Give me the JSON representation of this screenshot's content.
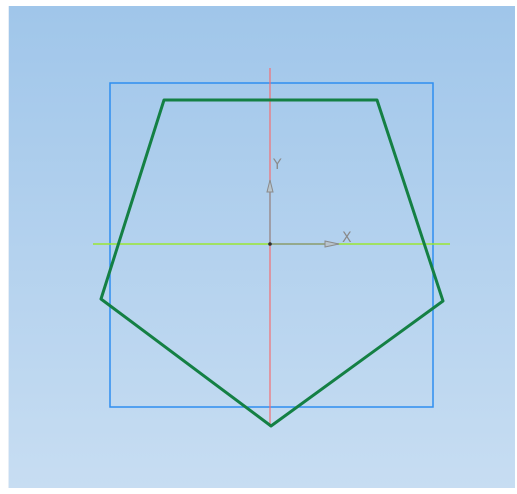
{
  "viewport": {
    "gradient_top": "#a0c6ea",
    "gradient_bottom": "#c7ddf2"
  },
  "colors": {
    "frame": "#2e8ef0",
    "polygon": "#148044",
    "vertical_axis": "#f26f73",
    "horizontal_axis": "#9ae634",
    "triad": "#8a8a8a"
  },
  "axes": {
    "x_label": "X",
    "y_label": "Y"
  }
}
